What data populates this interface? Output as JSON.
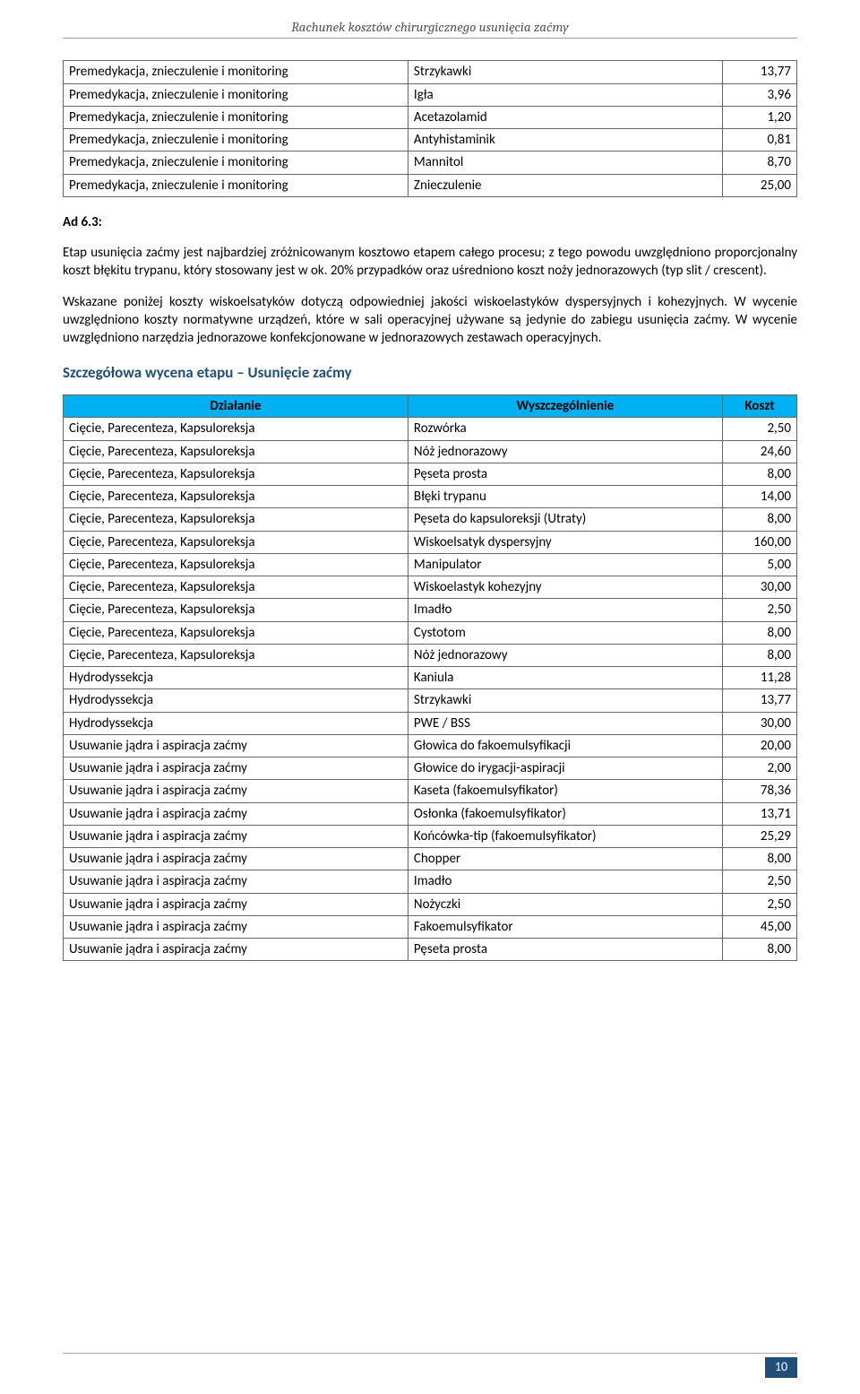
{
  "document": {
    "header_title": "Rachunek kosztów chirurgicznego usunięcia zaćmy",
    "page_number": "10"
  },
  "table1": {
    "rows": [
      {
        "c1": "Premedykacja, znieczulenie i monitoring",
        "c2": "Strzykawki",
        "c3": "13,77"
      },
      {
        "c1": "Premedykacja, znieczulenie i monitoring",
        "c2": "Igła",
        "c3": "3,96"
      },
      {
        "c1": "Premedykacja, znieczulenie i monitoring",
        "c2": "Acetazolamid",
        "c3": "1,20"
      },
      {
        "c1": "Premedykacja, znieczulenie i monitoring",
        "c2": "Antyhistaminik",
        "c3": "0,81"
      },
      {
        "c1": "Premedykacja, znieczulenie i monitoring",
        "c2": "Mannitol",
        "c3": "8,70"
      },
      {
        "c1": "Premedykacja, znieczulenie i monitoring",
        "c2": "Znieczulenie",
        "c3": "25,00"
      }
    ]
  },
  "ad63": {
    "label": "Ad 6.3:",
    "p1": "Etap usunięcia zaćmy jest najbardziej zróżnicowanym kosztowo etapem całego procesu; z tego powodu uwzględniono proporcjonalny koszt błękitu trypanu, który stosowany jest w ok. 20% przypadków oraz uśredniono koszt noży jednorazowych (typ slit / crescent).",
    "p2": "Wskazane poniżej koszty wiskoelsatyków dotyczą odpowiedniej jakości wiskoelastyków dyspersyjnych i kohezyjnych. W wycenie uwzględniono koszty normatywne urządzeń, które w sali operacyjnej używane są jedynie do zabiegu usunięcia zaćmy. W wycenie uwzględniono narzędzia jednorazowe konfekcjonowane w jednorazowych zestawach operacyjnych."
  },
  "section_heading": "Szczegółowa wycena etapu – Usunięcie zaćmy",
  "table2": {
    "headers": {
      "h1": "Działanie",
      "h2": "Wyszczególnienie",
      "h3": "Koszt"
    },
    "rows": [
      {
        "c1": "Cięcie, Parecenteza, Kapsuloreksja",
        "c2": "Rozwórka",
        "c3": "2,50"
      },
      {
        "c1": "Cięcie, Parecenteza, Kapsuloreksja",
        "c2": "Nóż jednorazowy",
        "c3": "24,60"
      },
      {
        "c1": "Cięcie, Parecenteza, Kapsuloreksja",
        "c2": "Pęseta prosta",
        "c3": "8,00"
      },
      {
        "c1": "Cięcie, Parecenteza, Kapsuloreksja",
        "c2": "Błęki trypanu",
        "c3": "14,00"
      },
      {
        "c1": "Cięcie, Parecenteza, Kapsuloreksja",
        "c2": "Pęseta do kapsuloreksji (Utraty)",
        "c3": "8,00"
      },
      {
        "c1": "Cięcie, Parecenteza, Kapsuloreksja",
        "c2": "Wiskoelsatyk dyspersyjny",
        "c3": "160,00"
      },
      {
        "c1": "Cięcie, Parecenteza, Kapsuloreksja",
        "c2": "Manipulator",
        "c3": "5,00"
      },
      {
        "c1": "Cięcie, Parecenteza, Kapsuloreksja",
        "c2": "Wiskoelastyk kohezyjny",
        "c3": "30,00"
      },
      {
        "c1": "Cięcie, Parecenteza, Kapsuloreksja",
        "c2": "Imadło",
        "c3": "2,50"
      },
      {
        "c1": "Cięcie, Parecenteza, Kapsuloreksja",
        "c2": "Cystotom",
        "c3": "8,00"
      },
      {
        "c1": "Cięcie, Parecenteza, Kapsuloreksja",
        "c2": "Nóż jednorazowy",
        "c3": "8,00"
      },
      {
        "c1": "Hydrodyssekcja",
        "c2": "Kaniula",
        "c3": "11,28"
      },
      {
        "c1": "Hydrodyssekcja",
        "c2": "Strzykawki",
        "c3": "13,77"
      },
      {
        "c1": "Hydrodyssekcja",
        "c2": "PWE / BSS",
        "c3": "30,00"
      },
      {
        "c1": "Usuwanie jądra i aspiracja zaćmy",
        "c2": "Głowica do fakoemulsyfikacji",
        "c3": "20,00"
      },
      {
        "c1": "Usuwanie jądra i aspiracja zaćmy",
        "c2": "Głowice do irygacji-aspiracji",
        "c3": "2,00"
      },
      {
        "c1": "Usuwanie jądra i aspiracja zaćmy",
        "c2": "Kaseta (fakoemulsyfikator)",
        "c3": "78,36"
      },
      {
        "c1": "Usuwanie jądra i aspiracja zaćmy",
        "c2": "Osłonka (fakoemulsyfikator)",
        "c3": "13,71"
      },
      {
        "c1": "Usuwanie jądra i aspiracja zaćmy",
        "c2": "Końcówka-tip (fakoemulsyfikator)",
        "c3": "25,29"
      },
      {
        "c1": "Usuwanie jądra i aspiracja zaćmy",
        "c2": "Chopper",
        "c3": "8,00"
      },
      {
        "c1": "Usuwanie jądra i aspiracja zaćmy",
        "c2": "Imadło",
        "c3": "2,50"
      },
      {
        "c1": "Usuwanie jądra i aspiracja zaćmy",
        "c2": "Nożyczki",
        "c3": "2,50"
      },
      {
        "c1": "Usuwanie jądra i aspiracja zaćmy",
        "c2": "Fakoemulsyfikator",
        "c3": "45,00"
      },
      {
        "c1": "Usuwanie jądra i aspiracja zaćmy",
        "c2": "Pęseta prosta",
        "c3": "8,00"
      }
    ]
  }
}
